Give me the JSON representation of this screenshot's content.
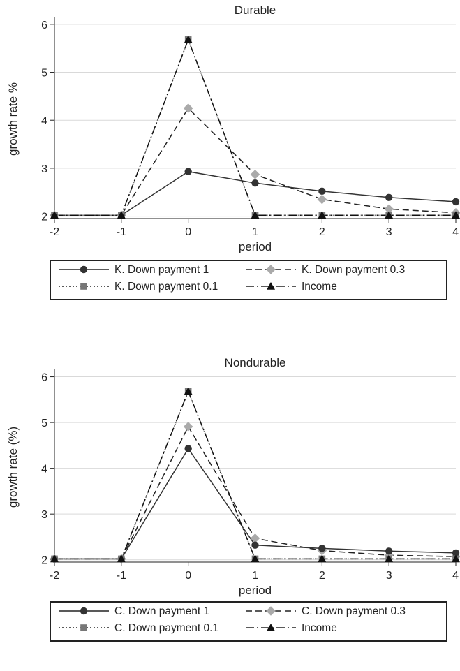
{
  "chart_data": [
    {
      "type": "line",
      "title": "Durable",
      "xlabel": "period",
      "ylabel": "growth rate %",
      "x": [
        -2,
        -1,
        0,
        1,
        2,
        3,
        4
      ],
      "x_ticks": [
        "-2",
        "-1",
        "0",
        "1",
        "2",
        "3",
        "4"
      ],
      "y_ticks": [
        "2",
        "3",
        "4",
        "5",
        "6"
      ],
      "xlim": [
        -2,
        4
      ],
      "ylim": [
        1.95,
        6.1
      ],
      "grid": true,
      "legend_position": "bottom",
      "series": [
        {
          "name": "K. Down payment 1",
          "style": "solid",
          "marker": "circle",
          "color": "#333333",
          "values": [
            2.02,
            2.02,
            2.93,
            2.69,
            2.52,
            2.39,
            2.3
          ]
        },
        {
          "name": "K. Down payment 0.3",
          "style": "dashed",
          "marker": "diamond",
          "color": "#aaaaaa",
          "values": [
            2.02,
            2.02,
            4.25,
            2.87,
            2.35,
            2.15,
            2.07
          ]
        },
        {
          "name": "K. Down payment 0.1",
          "style": "dotted",
          "marker": "square",
          "color": "#777777",
          "values": [
            2.02,
            2.02,
            5.68,
            2.02,
            2.02,
            2.02,
            2.02
          ]
        },
        {
          "name": "Income",
          "style": "dashdot",
          "marker": "triangle",
          "color": "#111111",
          "values": [
            2.02,
            2.02,
            5.68,
            2.02,
            2.02,
            2.02,
            2.02
          ]
        }
      ]
    },
    {
      "type": "line",
      "title": "Nondurable",
      "xlabel": "period",
      "ylabel": "growth rate (%)",
      "x": [
        -2,
        -1,
        0,
        1,
        2,
        3,
        4
      ],
      "x_ticks": [
        "-2",
        "-1",
        "0",
        "1",
        "2",
        "3",
        "4"
      ],
      "y_ticks": [
        "2",
        "3",
        "4",
        "5",
        "6"
      ],
      "xlim": [
        -2,
        4
      ],
      "ylim": [
        1.95,
        6.1
      ],
      "grid": true,
      "legend_position": "bottom",
      "series": [
        {
          "name": "C. Down payment 1",
          "style": "solid",
          "marker": "circle",
          "color": "#333333",
          "values": [
            2.02,
            2.02,
            4.43,
            2.32,
            2.25,
            2.19,
            2.15
          ]
        },
        {
          "name": "C. Down payment 0.3",
          "style": "dashed",
          "marker": "diamond",
          "color": "#aaaaaa",
          "values": [
            2.02,
            2.02,
            4.91,
            2.47,
            2.2,
            2.1,
            2.07
          ]
        },
        {
          "name": "C. Down payment 0.1",
          "style": "dotted",
          "marker": "square",
          "color": "#777777",
          "values": [
            2.02,
            2.02,
            5.68,
            2.02,
            2.02,
            2.02,
            2.02
          ]
        },
        {
          "name": "Income",
          "style": "dashdot",
          "marker": "triangle",
          "color": "#111111",
          "values": [
            2.02,
            2.02,
            5.68,
            2.02,
            2.02,
            2.02,
            2.02
          ]
        }
      ]
    }
  ]
}
